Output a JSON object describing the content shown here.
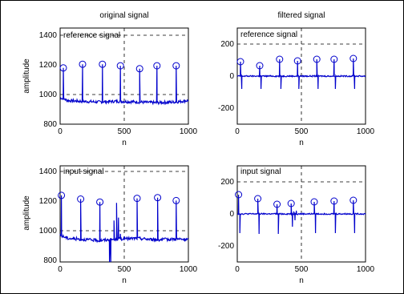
{
  "chart_data": [
    {
      "type": "line",
      "title": "original signal",
      "xlabel": "n",
      "ylabel": "amplitude",
      "annotation": "reference signal",
      "xlim": [
        0,
        1000
      ],
      "ylim": [
        800,
        1450
      ],
      "xticks": [
        0,
        500,
        1000
      ],
      "yticks": [
        800,
        1000,
        1200,
        1400
      ],
      "grid": "dashed, selected lines",
      "series": [
        {
          "color": "#0000cc",
          "baseline": [
            [
              0,
              980
            ],
            [
              60,
              960
            ],
            [
              150,
              955
            ],
            [
              300,
              950
            ],
            [
              450,
              955
            ],
            [
              600,
              950
            ],
            [
              750,
              945
            ],
            [
              900,
              950
            ],
            [
              1000,
              960
            ]
          ],
          "noise_amplitude": 10,
          "peaks": [
            [
              25,
              1180
            ],
            [
              175,
              1205
            ],
            [
              330,
              1205
            ],
            [
              470,
              1195
            ],
            [
              620,
              1175
            ],
            [
              755,
              1195
            ],
            [
              905,
              1195
            ]
          ],
          "markers": "circle at peaks"
        }
      ]
    },
    {
      "type": "line",
      "title": "filtered signal",
      "xlabel": "n",
      "ylabel": "",
      "annotation": "reference signal",
      "xlim": [
        0,
        1000
      ],
      "ylim": [
        -300,
        300
      ],
      "xticks": [
        0,
        500,
        1000
      ],
      "yticks": [
        -200,
        0,
        200
      ],
      "grid": "dashed, selected lines",
      "series": [
        {
          "color": "#0000cc",
          "baseline": [
            [
              0,
              0
            ],
            [
              1000,
              0
            ]
          ],
          "noise_amplitude": 4,
          "peaks": [
            [
              25,
              90
            ],
            [
              175,
              65
            ],
            [
              330,
              105
            ],
            [
              470,
              95
            ],
            [
              620,
              105
            ],
            [
              755,
              105
            ],
            [
              905,
              110
            ]
          ],
          "troughs": [
            [
              35,
              -80
            ],
            [
              185,
              -80
            ],
            [
              340,
              -80
            ],
            [
              480,
              -80
            ],
            [
              630,
              -80
            ],
            [
              765,
              -80
            ],
            [
              915,
              -80
            ]
          ],
          "markers": "circle at peaks"
        }
      ]
    },
    {
      "type": "line",
      "title": "",
      "xlabel": "n",
      "ylabel": "amplitude",
      "annotation": "input signal",
      "xlim": [
        0,
        1000
      ],
      "ylim": [
        800,
        1450
      ],
      "xticks": [
        0,
        500,
        1000
      ],
      "yticks": [
        800,
        1000,
        1200,
        1400
      ],
      "grid": "dashed, selected lines",
      "series": [
        {
          "color": "#0000cc",
          "baseline": [
            [
              0,
              980
            ],
            [
              60,
              960
            ],
            [
              300,
              945
            ],
            [
              450,
              955
            ],
            [
              600,
              960
            ],
            [
              750,
              950
            ],
            [
              900,
              955
            ],
            [
              1000,
              950
            ]
          ],
          "noise_amplitude": 10,
          "peaks": [
            [
              10,
              1250
            ],
            [
              160,
              1225
            ],
            [
              310,
              1205
            ],
            [
              600,
              1230
            ],
            [
              760,
              1235
            ],
            [
              905,
              1215
            ]
          ],
          "artifact": [
            [
              375,
              950
            ],
            [
              385,
              800
            ],
            [
              395,
              800
            ],
            [
              420,
              1080
            ],
            [
              440,
              1200
            ],
            [
              455,
              1100
            ],
            [
              470,
              990
            ]
          ],
          "markers": "circle at peaks"
        }
      ]
    },
    {
      "type": "line",
      "title": "",
      "xlabel": "n",
      "ylabel": "",
      "annotation": "input signal",
      "xlim": [
        0,
        1000
      ],
      "ylim": [
        -300,
        300
      ],
      "xticks": [
        0,
        500,
        1000
      ],
      "yticks": [
        -200,
        0,
        200
      ],
      "grid": "dashed, selected lines",
      "series": [
        {
          "color": "#0000cc",
          "baseline": [
            [
              0,
              0
            ],
            [
              1000,
              0
            ]
          ],
          "noise_amplitude": 4,
          "peaks": [
            [
              10,
              120
            ],
            [
              160,
              95
            ],
            [
              310,
              60
            ],
            [
              420,
              65
            ],
            [
              600,
              75
            ],
            [
              755,
              80
            ],
            [
              905,
              85
            ]
          ],
          "troughs": [
            [
              20,
              -120
            ],
            [
              170,
              -125
            ],
            [
              320,
              -125
            ],
            [
              430,
              -80
            ],
            [
              610,
              -120
            ],
            [
              765,
              -120
            ],
            [
              915,
              -120
            ]
          ],
          "artifact": [
            [
              440,
              15
            ],
            [
              450,
              -40
            ],
            [
              460,
              20
            ],
            [
              470,
              -5
            ]
          ],
          "markers": "circle at peaks"
        }
      ]
    }
  ]
}
